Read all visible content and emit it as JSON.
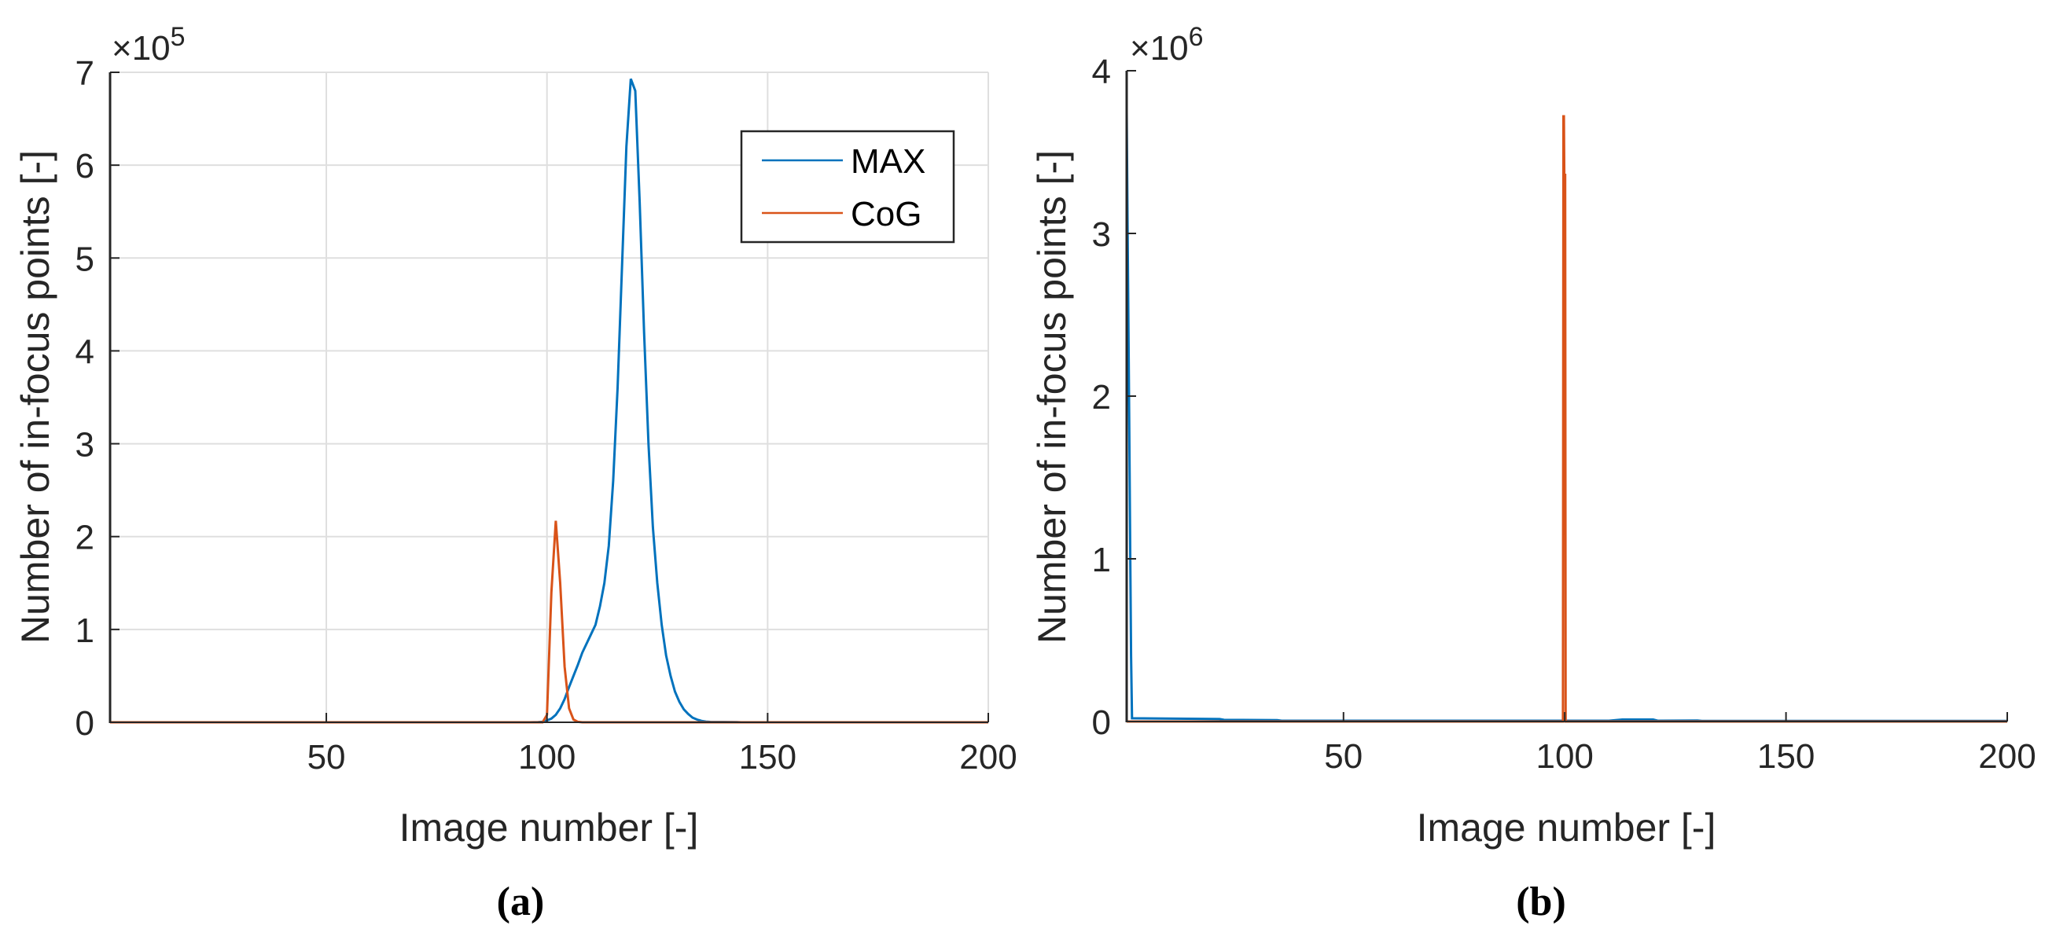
{
  "chart_data": [
    {
      "panel": "a",
      "type": "line",
      "caption": "(a)",
      "title": "",
      "xlabel": "Image number [-]",
      "ylabel": "Number of in-focus points [-]",
      "y_exponent_label": "×10",
      "y_exponent": "5",
      "xlim": [
        1,
        200
      ],
      "ylim": [
        0,
        7
      ],
      "y_scale": 100000,
      "x_ticks": [
        50,
        100,
        150,
        200
      ],
      "y_ticks": [
        0,
        1,
        2,
        3,
        4,
        5,
        6,
        7
      ],
      "grid": true,
      "legend": {
        "position": "upper right",
        "entries": [
          "MAX",
          "CoG"
        ]
      },
      "series": [
        {
          "name": "MAX",
          "color": "#0072BD",
          "points": [
            [
              1,
              0
            ],
            [
              96,
              0
            ],
            [
              98,
              0.002
            ],
            [
              99,
              0.005
            ],
            [
              100,
              0.02
            ],
            [
              101,
              0.04
            ],
            [
              102,
              0.08
            ],
            [
              103,
              0.15
            ],
            [
              104,
              0.25
            ],
            [
              105,
              0.38
            ],
            [
              106,
              0.5
            ],
            [
              107,
              0.62
            ],
            [
              108,
              0.75
            ],
            [
              109,
              0.85
            ],
            [
              110,
              0.95
            ],
            [
              111,
              1.05
            ],
            [
              112,
              1.25
            ],
            [
              113,
              1.5
            ],
            [
              114,
              1.9
            ],
            [
              115,
              2.6
            ],
            [
              116,
              3.6
            ],
            [
              117,
              4.9
            ],
            [
              118,
              6.2
            ],
            [
              119,
              6.93
            ],
            [
              120,
              6.8
            ],
            [
              121,
              5.6
            ],
            [
              122,
              4.2
            ],
            [
              123,
              3.0
            ],
            [
              124,
              2.1
            ],
            [
              125,
              1.5
            ],
            [
              126,
              1.05
            ],
            [
              127,
              0.72
            ],
            [
              128,
              0.5
            ],
            [
              129,
              0.33
            ],
            [
              130,
              0.22
            ],
            [
              131,
              0.14
            ],
            [
              132,
              0.09
            ],
            [
              133,
              0.05
            ],
            [
              134,
              0.03
            ],
            [
              135,
              0.015
            ],
            [
              136,
              0.008
            ],
            [
              137,
              0.004
            ],
            [
              143,
              0.002
            ],
            [
              144,
              0
            ],
            [
              200,
              0
            ]
          ]
        },
        {
          "name": "CoG",
          "color": "#D95319",
          "points": [
            [
              1,
              0
            ],
            [
              99,
              0
            ],
            [
              100,
              0.08
            ],
            [
              101,
              1.4
            ],
            [
              102,
              2.17
            ],
            [
              103,
              1.5
            ],
            [
              104,
              0.6
            ],
            [
              105,
              0.15
            ],
            [
              106,
              0.03
            ],
            [
              107,
              0.005
            ],
            [
              108,
              0
            ],
            [
              200,
              0
            ]
          ]
        }
      ]
    },
    {
      "panel": "b",
      "type": "line",
      "caption": "(b)",
      "title": "",
      "xlabel": "Image number [-]",
      "ylabel": "Number of in-focus points [-]",
      "y_exponent_label": "×10",
      "y_exponent": "6",
      "xlim": [
        1,
        200
      ],
      "ylim": [
        0,
        4
      ],
      "y_scale": 1000000,
      "x_ticks": [
        50,
        100,
        150,
        200
      ],
      "y_ticks": [
        0,
        1,
        2,
        3,
        4
      ],
      "grid": false,
      "series": [
        {
          "name": "MAX",
          "color": "#0072BD",
          "points": [
            [
              1,
              3.75
            ],
            [
              1.2,
              3.07
            ],
            [
              1.4,
              2.4
            ],
            [
              1.6,
              1.75
            ],
            [
              1.8,
              1.05
            ],
            [
              2,
              0.4
            ],
            [
              2.2,
              0.02
            ],
            [
              22,
              0.015
            ],
            [
              23,
              0.01
            ],
            [
              35,
              0.008
            ],
            [
              36,
              0.005
            ],
            [
              110,
              0.005
            ],
            [
              113,
              0.012
            ],
            [
              120,
              0.012
            ],
            [
              121,
              0.005
            ],
            [
              130,
              0.006
            ],
            [
              131,
              0.004
            ],
            [
              200,
              0.004
            ]
          ]
        },
        {
          "name": "CoG",
          "color": "#D95319",
          "points": [
            [
              1,
              0
            ],
            [
              99.6,
              0
            ],
            [
              99.7,
              3.72
            ],
            [
              99.8,
              3.72
            ],
            [
              99.9,
              3.36
            ],
            [
              100.1,
              3.36
            ],
            [
              100.2,
              0
            ],
            [
              200,
              0
            ]
          ]
        }
      ]
    }
  ]
}
